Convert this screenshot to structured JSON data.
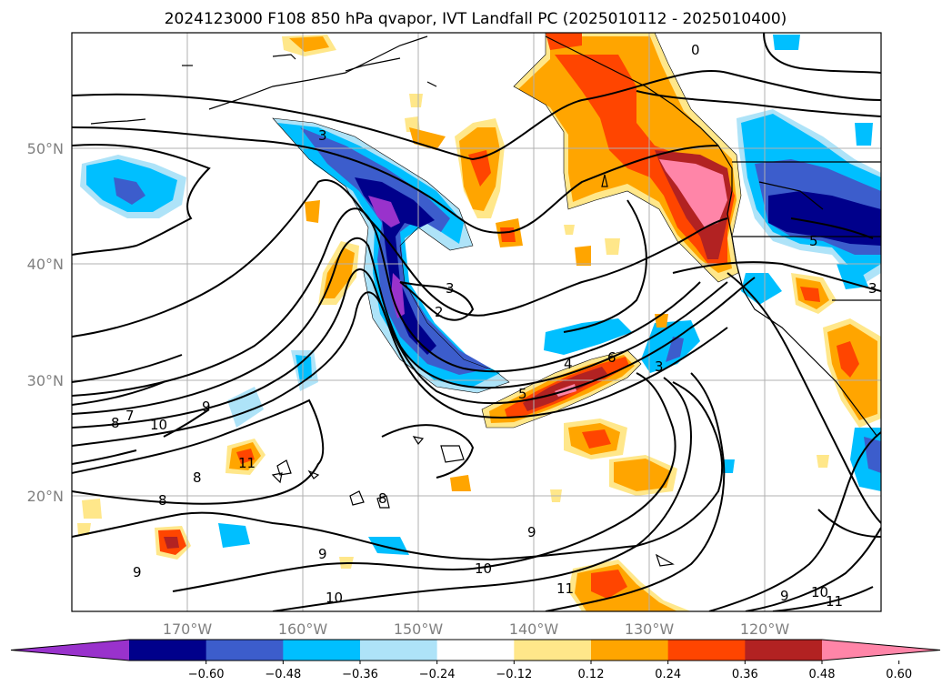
{
  "title": "2024123000 F108 850 hPa qvapor, IVT Landfall PC (2025010112 - 2025010400)",
  "lat_labels": [
    "50°N",
    "40°N",
    "30°N",
    "20°N"
  ],
  "lon_labels": [
    "170°W",
    "160°W",
    "150°W",
    "140°W",
    "130°W",
    "120°W"
  ],
  "colorbar": {
    "ticks": [
      "−0.60",
      "−0.48",
      "−0.36",
      "−0.24",
      "−0.12",
      "0.12",
      "0.24",
      "0.36",
      "0.48",
      "0.60"
    ],
    "colors": [
      "#9932cc",
      "#00008b",
      "#3c5dcc",
      "#00bfff",
      "#aee3f8",
      "#ffffff",
      "#ffe78a",
      "#ffa500",
      "#ff4500",
      "#b22222",
      "#ff85a8"
    ]
  },
  "contour_labels": [
    "0",
    "3",
    "3",
    "2",
    "3",
    "4",
    "5",
    "6",
    "5",
    "3",
    "7",
    "8",
    "9",
    "10",
    "8",
    "8",
    "8",
    "9",
    "9",
    "9",
    "10",
    "10",
    "11",
    "11",
    "9",
    "10",
    "11"
  ],
  "colors": {
    "frame": "#000000",
    "grid": "#b0b0b0",
    "axis_text": "#808080"
  }
}
